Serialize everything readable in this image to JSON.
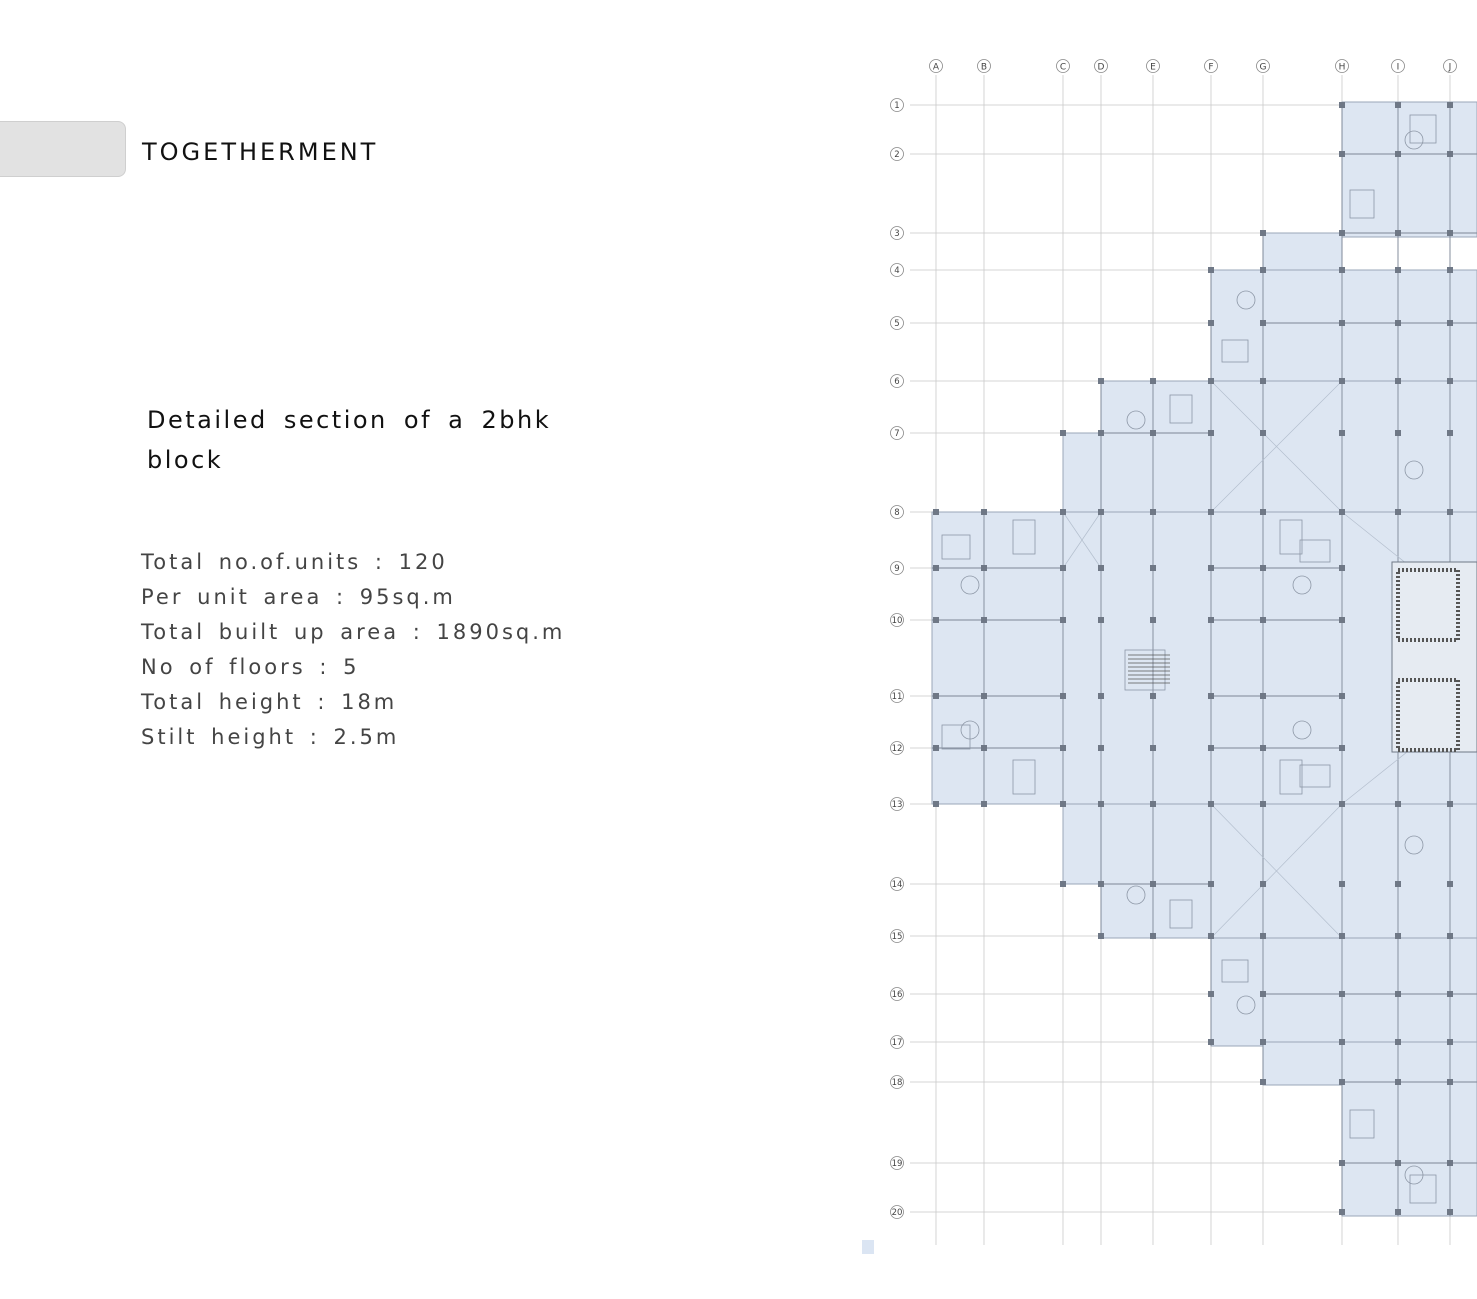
{
  "header": {
    "title": "TOGETHERMENT"
  },
  "description": {
    "subtitle": "Detailed section of a 2bhk block"
  },
  "stats": [
    "Total no.of.units : 120",
    "Per unit area : 95sq.m",
    "Total built up area : 1890sq.m",
    "No of floors : 5",
    "Total height : 18m",
    "Stilt height : 2.5m"
  ],
  "plan": {
    "column_grid_labels": [
      "A",
      "B",
      "C",
      "D",
      "E",
      "F",
      "G",
      "H",
      "I",
      "J"
    ],
    "row_grid_labels": [
      "1",
      "2",
      "3",
      "4",
      "5",
      "6",
      "7",
      "8",
      "9",
      "10",
      "11",
      "12",
      "13",
      "14",
      "15",
      "16",
      "17",
      "18",
      "19",
      "20"
    ],
    "colors": {
      "fill": "#dde6f2",
      "line": "#9aa7b8",
      "grid": "#c9c9c9"
    }
  }
}
